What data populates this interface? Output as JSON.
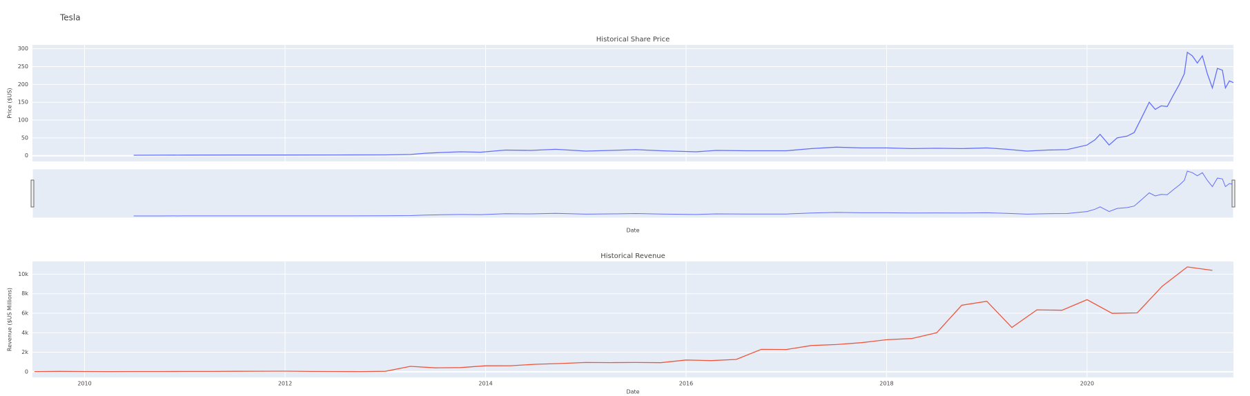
{
  "title": "Tesla",
  "chart_data": [
    {
      "type": "line",
      "title": "Historical Share Price",
      "x_label": "Date",
      "y_label": "Price ($US)",
      "color": "#636efa",
      "grid": true,
      "rangeslider": true,
      "xlim": [
        2009.48,
        2021.46
      ],
      "xticks": [
        2010,
        2012,
        2014,
        2016,
        2018,
        2020
      ],
      "ylim": [
        -16,
        311
      ],
      "yticks": [
        0,
        50,
        100,
        150,
        200,
        250,
        300
      ],
      "x": [
        2010.49,
        2010.75,
        2011.0,
        2011.5,
        2012.0,
        2012.5,
        2013.0,
        2013.25,
        2013.4,
        2013.55,
        2013.75,
        2013.95,
        2014.2,
        2014.45,
        2014.7,
        2015.0,
        2015.25,
        2015.5,
        2015.75,
        2016.1,
        2016.3,
        2016.6,
        2017.0,
        2017.25,
        2017.5,
        2017.75,
        2018.0,
        2018.25,
        2018.5,
        2018.75,
        2019.0,
        2019.2,
        2019.4,
        2019.6,
        2019.8,
        2020.0,
        2020.08,
        2020.13,
        2020.22,
        2020.3,
        2020.4,
        2020.47,
        2020.55,
        2020.62,
        2020.68,
        2020.74,
        2020.8,
        2020.86,
        2020.92,
        2020.97,
        2021.0,
        2021.05,
        2021.1,
        2021.15,
        2021.2,
        2021.25,
        2021.3,
        2021.35,
        2021.38,
        2021.42,
        2021.46
      ],
      "values": [
        1.5,
        1.7,
        1.8,
        1.9,
        2.0,
        2.1,
        2.3,
        3.5,
        7,
        9,
        11,
        10,
        16,
        15,
        18,
        13,
        15,
        17,
        14,
        11,
        15,
        14,
        14,
        20,
        24,
        22,
        22,
        20,
        21,
        20,
        22,
        18,
        13,
        16,
        17,
        30,
        45,
        60,
        30,
        50,
        55,
        65,
        110,
        150,
        130,
        140,
        138,
        170,
        200,
        230,
        290,
        280,
        260,
        280,
        230,
        190,
        245,
        240,
        190,
        210,
        205
      ]
    },
    {
      "type": "line",
      "title": "Historical Revenue",
      "x_label": "Date",
      "y_label": "Revenue ($US Millions)",
      "color": "#ef553b",
      "grid": true,
      "xlim": [
        2009.48,
        2021.46
      ],
      "xticks": [
        2010,
        2012,
        2014,
        2016,
        2018,
        2020
      ],
      "ylim": [
        -570,
        11300
      ],
      "yticks": [
        0,
        {
          "value": 2000,
          "label": "2k"
        },
        {
          "value": 4000,
          "label": "4k"
        },
        {
          "value": 6000,
          "label": "6k"
        },
        {
          "value": 8000,
          "label": "8k"
        },
        {
          "value": 10000,
          "label": "10k"
        }
      ],
      "x": [
        2009.5,
        2009.75,
        2010.0,
        2010.25,
        2010.5,
        2010.75,
        2011.0,
        2011.25,
        2011.5,
        2011.75,
        2012.0,
        2012.25,
        2012.5,
        2012.75,
        2013.0,
        2013.25,
        2013.5,
        2013.75,
        2014.0,
        2014.25,
        2014.5,
        2014.75,
        2015.0,
        2015.25,
        2015.5,
        2015.75,
        2016.0,
        2016.25,
        2016.5,
        2016.75,
        2017.0,
        2017.25,
        2017.5,
        2017.75,
        2018.0,
        2018.25,
        2018.5,
        2018.75,
        2019.0,
        2019.25,
        2019.5,
        2019.75,
        2020.0,
        2020.25,
        2020.5,
        2020.75,
        2021.0,
        2021.25
      ],
      "values": [
        27,
        46,
        33,
        21,
        28,
        31,
        36,
        37,
        49,
        58,
        65,
        39,
        30,
        27,
        50,
        562,
        405,
        431,
        615,
        621,
        769,
        852,
        957,
        940,
        955,
        937,
        1214,
        1147,
        1270,
        2298,
        2285,
        2696,
        2790,
        2985,
        3288,
        3409,
        4002,
        6824,
        7226,
        4541,
        6350,
        6303,
        7384,
        5985,
        6036,
        8771,
        10744,
        10389
      ]
    }
  ]
}
